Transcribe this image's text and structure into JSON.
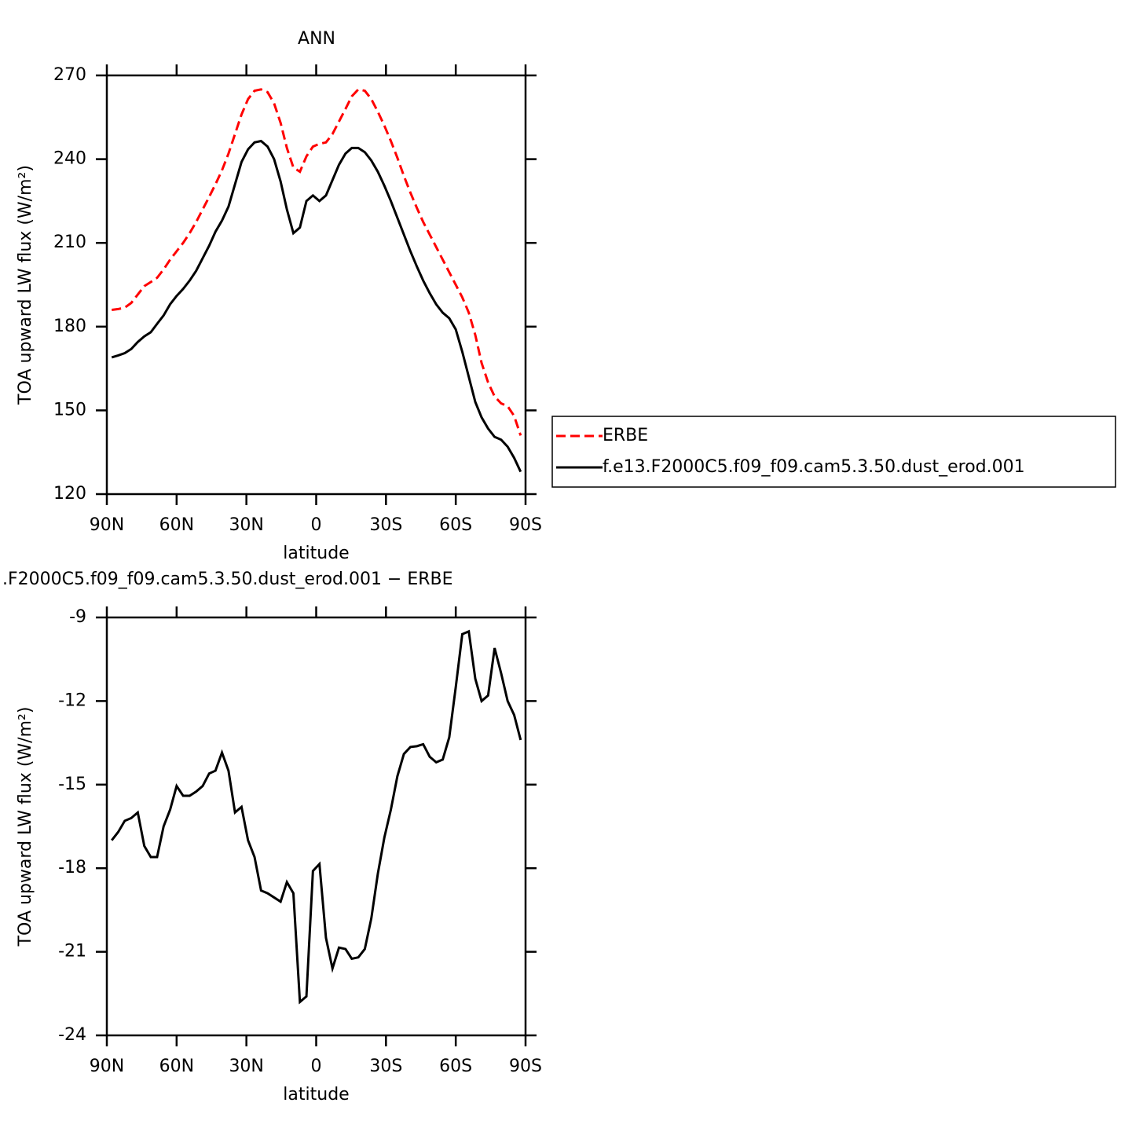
{
  "chart_data": [
    {
      "type": "line",
      "title": "ANN",
      "xlabel": "latitude",
      "ylabel": "TOA upward LW flux (W/m²)",
      "x": [
        87.9,
        85.1,
        82.3,
        79.5,
        76.7,
        73.9,
        71.1,
        68.4,
        65.6,
        62.8,
        60.0,
        57.2,
        54.4,
        51.6,
        48.8,
        46.0,
        43.3,
        40.5,
        37.7,
        34.9,
        32.1,
        29.3,
        26.5,
        23.7,
        20.9,
        18.1,
        15.3,
        12.6,
        9.8,
        7.0,
        4.2,
        1.4,
        -1.4,
        -4.2,
        -7.0,
        -9.8,
        -12.6,
        -15.3,
        -18.1,
        -20.9,
        -23.7,
        -26.5,
        -29.3,
        -32.1,
        -34.9,
        -37.7,
        -40.5,
        -43.3,
        -46.0,
        -48.8,
        -51.6,
        -54.4,
        -57.2,
        -60.0,
        -62.8,
        -65.6,
        -68.4,
        -71.1,
        -73.9,
        -76.7,
        -79.5,
        -82.3,
        -85.1,
        -87.9
      ],
      "series": [
        {
          "name": "ERBE",
          "color": "#ff0000",
          "style": "dashed",
          "values": [
            186,
            186.3,
            186.8,
            188.5,
            191.5,
            194.5,
            196,
            197.5,
            200.5,
            204,
            207,
            210,
            213.5,
            217.5,
            222,
            226.5,
            231,
            236,
            242,
            249,
            256,
            261.5,
            264.5,
            265,
            264,
            260,
            253,
            244,
            237,
            235.5,
            241,
            244.5,
            245.5,
            246,
            249,
            253.5,
            258,
            262.5,
            265,
            264.5,
            261.5,
            257,
            252,
            246.5,
            240.5,
            234,
            228,
            222.5,
            217.5,
            213,
            208.5,
            204,
            199.5,
            195,
            190.5,
            185,
            177,
            167,
            160,
            155,
            152.5,
            151.5,
            148,
            141
          ]
        },
        {
          "name": "f.e13.F2000C5.f09_f09.cam5.3.50.dust_erod.001",
          "color": "#000000",
          "style": "solid",
          "values": [
            169,
            169.7,
            170.5,
            172,
            174.5,
            176.5,
            178,
            181,
            184,
            188,
            191,
            193.5,
            196.5,
            200,
            204.5,
            209,
            214,
            218,
            223,
            231,
            239,
            243.5,
            246,
            246.5,
            244.5,
            240,
            232,
            222,
            213.5,
            215.5,
            225,
            227,
            225,
            227,
            232.5,
            238,
            242,
            244,
            244,
            242.5,
            239.5,
            235.5,
            230.5,
            225,
            219,
            213,
            207,
            201.5,
            196.5,
            192,
            188,
            185,
            183,
            179,
            171,
            162,
            153,
            147.5,
            143.5,
            140.5,
            139.5,
            137,
            133,
            128
          ]
        }
      ],
      "xlim": [
        90,
        -90
      ],
      "xticks": [
        {
          "value": 90,
          "label": "90N"
        },
        {
          "value": 60,
          "label": "60N"
        },
        {
          "value": 30,
          "label": "30N"
        },
        0,
        {
          "value": -30,
          "label": "30S"
        },
        {
          "value": -60,
          "label": "60S"
        },
        {
          "value": -90,
          "label": "90S"
        }
      ],
      "ylim": [
        120,
        270
      ],
      "yticks": [
        120,
        150,
        180,
        210,
        240,
        270
      ],
      "legend": "right"
    },
    {
      "type": "line",
      "title": ".F2000C5.f09_f09.cam5.3.50.dust_erod.001 − ERBE",
      "xlabel": "latitude",
      "ylabel": "TOA upward LW flux (W/m²)",
      "x": [
        87.9,
        85.1,
        82.3,
        79.5,
        76.7,
        73.9,
        71.1,
        68.4,
        65.6,
        62.8,
        60.0,
        57.2,
        54.4,
        51.6,
        48.8,
        46.0,
        43.3,
        40.5,
        37.7,
        34.9,
        32.1,
        29.3,
        26.5,
        23.7,
        20.9,
        18.1,
        15.3,
        12.6,
        9.8,
        7.0,
        4.2,
        1.4,
        -1.4,
        -4.2,
        -7.0,
        -9.8,
        -12.6,
        -15.3,
        -18.1,
        -20.9,
        -23.7,
        -26.5,
        -29.3,
        -32.1,
        -34.9,
        -37.7,
        -40.5,
        -43.3,
        -46.0,
        -48.8,
        -51.6,
        -54.4,
        -57.2,
        -60.0,
        -62.8,
        -65.6,
        -68.4,
        -71.1,
        -73.9,
        -76.7,
        -79.5,
        -82.3,
        -85.1,
        -87.9
      ],
      "series": [
        {
          "color": "#000000",
          "style": "solid",
          "values": [
            -17.0,
            -16.7,
            -16.3,
            -16.2,
            -16.0,
            -17.2,
            -17.6,
            -17.6,
            -16.5,
            -15.9,
            -15.05,
            -15.4,
            -15.4,
            -15.25,
            -15.05,
            -14.6,
            -14.5,
            -13.85,
            -14.5,
            -16.0,
            -15.8,
            -17.0,
            -17.6,
            -18.8,
            -18.9,
            -19.05,
            -19.2,
            -18.5,
            -18.9,
            -22.8,
            -22.6,
            -18.1,
            -17.85,
            -20.5,
            -21.6,
            -20.85,
            -20.9,
            -21.25,
            -21.2,
            -20.9,
            -19.8,
            -18.2,
            -16.9,
            -15.9,
            -14.7,
            -13.9,
            -13.65,
            -13.62,
            -13.55,
            -14.0,
            -14.2,
            -14.1,
            -13.3,
            -11.5,
            -9.6,
            -9.5,
            -11.2,
            -12.0,
            -11.8,
            -10.1,
            -11.0,
            -12.0,
            -12.5,
            -13.4
          ]
        }
      ],
      "xlim": [
        90,
        -90
      ],
      "xticks": [
        {
          "value": 90,
          "label": "90N"
        },
        {
          "value": 60,
          "label": "60N"
        },
        {
          "value": 30,
          "label": "30N"
        },
        0,
        {
          "value": -30,
          "label": "30S"
        },
        {
          "value": -60,
          "label": "60S"
        },
        {
          "value": -90,
          "label": "90S"
        }
      ],
      "ylim": [
        -24,
        -9
      ],
      "yticks": [
        -24,
        -21,
        -18,
        -15,
        -12,
        -9
      ]
    }
  ]
}
